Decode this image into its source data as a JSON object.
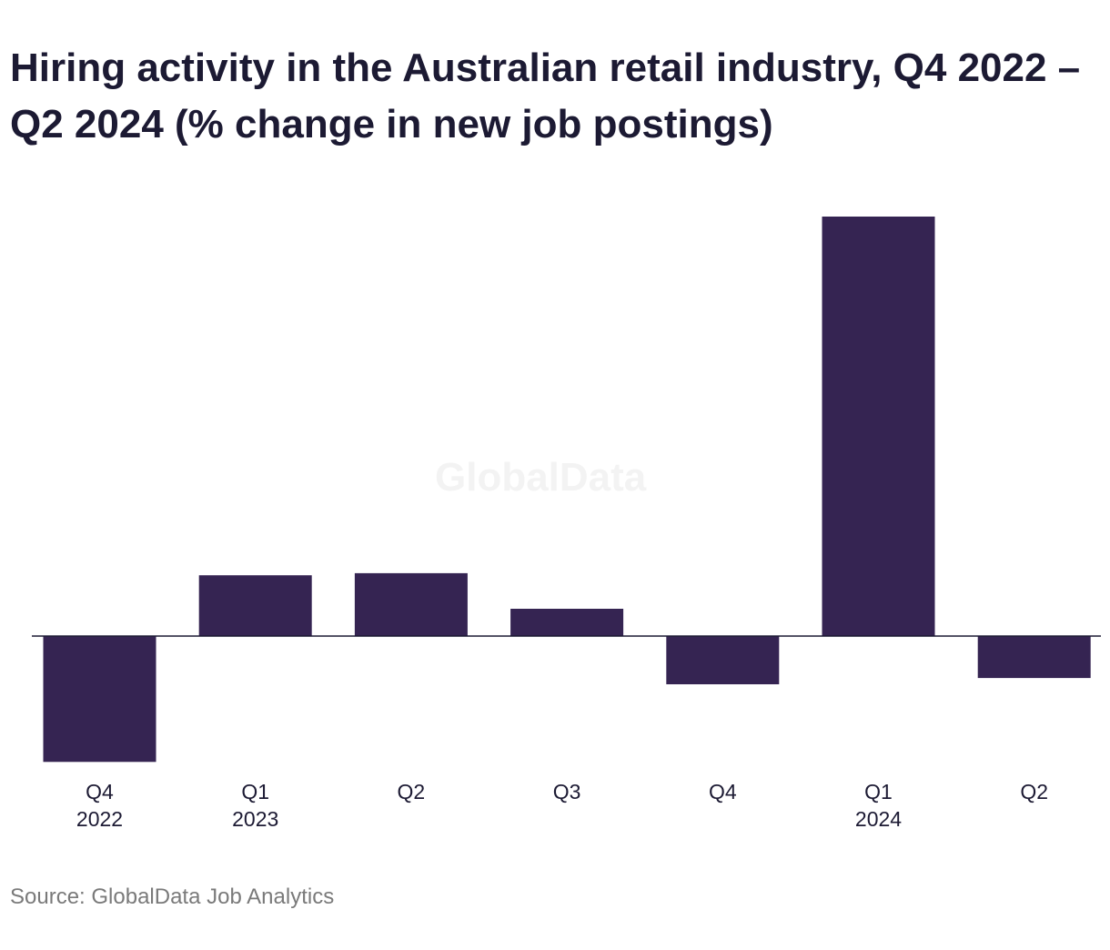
{
  "title": "Hiring activity in the Australian retail industry, Q4 2022 – Q2 2024 (% change in new job postings)",
  "source": "Source: GlobalData Job Analytics",
  "watermark": "GlobalData",
  "colors": {
    "bar": "#352452",
    "axis": "#1c1a33",
    "text": "#1c1a33",
    "source": "#7a7a7a"
  },
  "chart_data": {
    "type": "bar",
    "title": "Hiring activity in the Australian retail industry, Q4 2022 – Q2 2024 (% change in new job postings)",
    "xlabel": "",
    "ylabel": "",
    "categories": [
      {
        "quarter": "Q4",
        "year": "2022"
      },
      {
        "quarter": "Q1",
        "year": "2023"
      },
      {
        "quarter": "Q2",
        "year": ""
      },
      {
        "quarter": "Q3",
        "year": ""
      },
      {
        "quarter": "Q4",
        "year": ""
      },
      {
        "quarter": "Q1",
        "year": "2024"
      },
      {
        "quarter": "Q2",
        "year": ""
      }
    ],
    "values": [
      -30,
      14.5,
      15,
      6.5,
      -11.5,
      100,
      -10
    ],
    "ylim": [
      -35,
      110
    ],
    "grid": false,
    "legend": "none"
  }
}
